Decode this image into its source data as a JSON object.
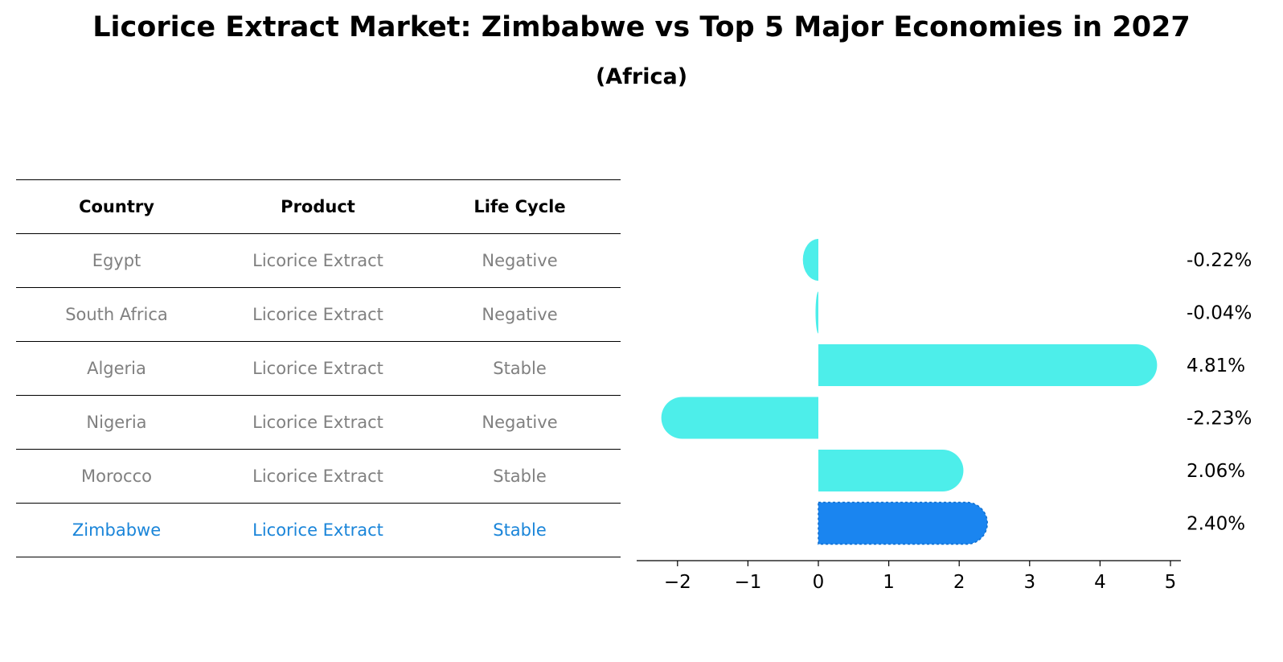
{
  "title": "Licorice Extract Market: Zimbabwe vs Top 5 Major Economies in 2027",
  "subtitle": "(Africa)",
  "table": {
    "headers": [
      "Country",
      "Product",
      "Life Cycle"
    ],
    "rows": [
      [
        "Egypt",
        "Licorice Extract",
        "Negative"
      ],
      [
        "South Africa",
        "Licorice Extract",
        "Negative"
      ],
      [
        "Algeria",
        "Licorice Extract",
        "Stable"
      ],
      [
        "Nigeria",
        "Licorice Extract",
        "Negative"
      ],
      [
        "Morocco",
        "Licorice Extract",
        "Stable"
      ],
      [
        "Zimbabwe",
        "Licorice Extract",
        "Stable"
      ]
    ]
  },
  "chart_data": {
    "type": "bar",
    "orientation": "horizontal",
    "categories": [
      "Egypt",
      "South Africa",
      "Algeria",
      "Nigeria",
      "Morocco",
      "Zimbabwe"
    ],
    "values": [
      -0.22,
      -0.04,
      4.81,
      -2.23,
      2.06,
      2.4
    ],
    "value_labels": [
      "-0.22%",
      "-0.04%",
      "4.81%",
      "-2.23%",
      "2.06%",
      "2.40%"
    ],
    "highlight": "Zimbabwe",
    "xlim": [
      -2.6,
      5.2
    ],
    "xticks": [
      -2,
      -1,
      0,
      1,
      2,
      3,
      4,
      5
    ],
    "xtick_labels": [
      "−2",
      "−1",
      "0",
      "1",
      "2",
      "3",
      "4",
      "5"
    ],
    "grid": false,
    "colors": {
      "bar": "#4deeea",
      "highlight": "#1a85f0"
    }
  }
}
